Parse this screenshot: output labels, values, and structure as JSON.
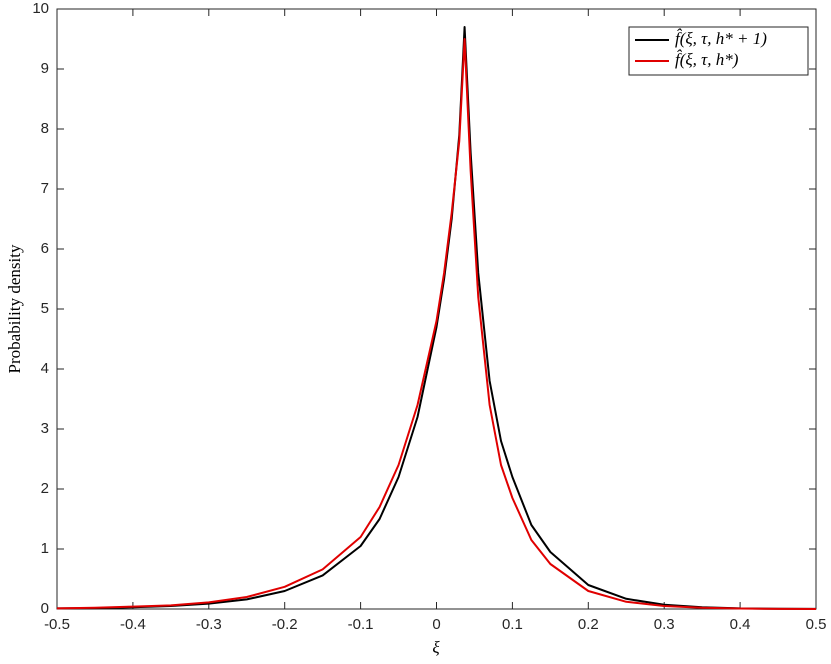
{
  "chart_data": {
    "type": "line",
    "xlabel": "ξ",
    "ylabel": "Probability density",
    "x": [
      -0.5,
      -0.45,
      -0.4,
      -0.35,
      -0.3,
      -0.25,
      -0.2,
      -0.15,
      -0.1,
      -0.075,
      -0.05,
      -0.025,
      0,
      0.01,
      0.02,
      0.03,
      0.037,
      0.045,
      0.055,
      0.07,
      0.085,
      0.1,
      0.125,
      0.15,
      0.2,
      0.25,
      0.3,
      0.35,
      0.4,
      0.45,
      0.5
    ],
    "series": [
      {
        "name": "f̂(ξ, τ, h* + 1)",
        "color": "#000000",
        "values": [
          0.01,
          0.015,
          0.03,
          0.05,
          0.09,
          0.16,
          0.3,
          0.56,
          1.05,
          1.5,
          2.2,
          3.2,
          4.7,
          5.5,
          6.5,
          7.9,
          9.7,
          7.6,
          5.6,
          3.8,
          2.8,
          2.2,
          1.4,
          0.95,
          0.4,
          0.17,
          0.07,
          0.03,
          0.01,
          0.005,
          0.002
        ]
      },
      {
        "name": "f̂(ξ, τ, h*)",
        "color": "#e00000",
        "values": [
          0.01,
          0.02,
          0.04,
          0.06,
          0.11,
          0.2,
          0.37,
          0.66,
          1.2,
          1.7,
          2.4,
          3.4,
          4.8,
          5.6,
          6.6,
          7.8,
          9.5,
          7.3,
          5.2,
          3.4,
          2.4,
          1.85,
          1.15,
          0.75,
          0.3,
          0.12,
          0.05,
          0.02,
          0.008,
          0.003,
          0.001
        ]
      }
    ],
    "xlim": [
      -0.5,
      0.5
    ],
    "xticks": [
      -0.5,
      -0.4,
      -0.3,
      -0.2,
      -0.1,
      0,
      0.1,
      0.2,
      0.3,
      0.4,
      0.5
    ],
    "ylim": [
      0,
      10
    ],
    "yticks": [
      0,
      1,
      2,
      3,
      4,
      5,
      6,
      7,
      8,
      9,
      10
    ],
    "legend": "top-right"
  }
}
